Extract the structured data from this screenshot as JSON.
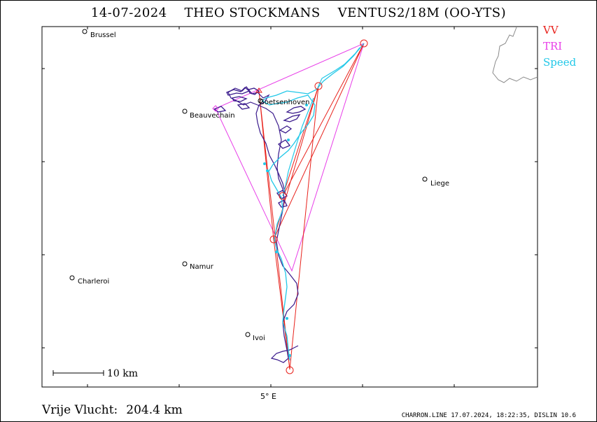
{
  "title": "14-07-2024    THEO STOCKMANS    VENTUS2/18M (OO-YTS)",
  "legend": [
    {
      "label": "VV",
      "color": "#e8221c"
    },
    {
      "label": "TRI",
      "color": "#e83ee8"
    },
    {
      "label": "Speed",
      "color": "#22c8e8"
    }
  ],
  "cities": [
    {
      "name": "Brussel"
    },
    {
      "name": "Beauvechain"
    },
    {
      "name": "Goetsenhoven"
    },
    {
      "name": "Liege"
    },
    {
      "name": "Namur"
    },
    {
      "name": "Charleroi"
    },
    {
      "name": "Ivoi"
    }
  ],
  "axis": {
    "x_tick_label": "5° E"
  },
  "scale_bar": {
    "label": "10 km"
  },
  "distance": {
    "label": "Vrije Vlucht:",
    "value": "204.4 km"
  },
  "footer": "CHARRON.LINE 17.07.2024, 18:22:35, DISLIN 10.6",
  "colors": {
    "track": "#3a1a8c",
    "vv": "#e8221c",
    "tri": "#e83ee8",
    "speed": "#22c8e8",
    "border": "#8a8a8a"
  }
}
